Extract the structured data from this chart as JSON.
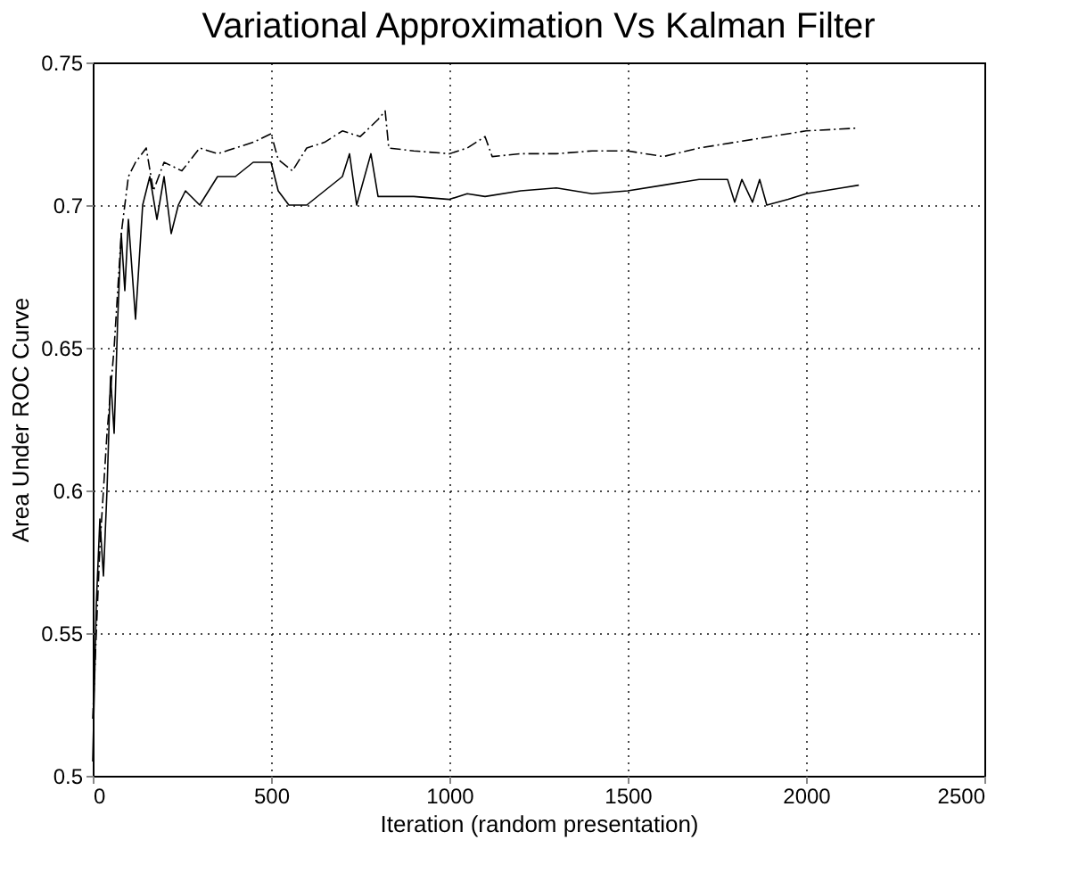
{
  "chart_data": {
    "type": "line",
    "title": "Variational Approximation Vs Kalman Filter",
    "xlabel": "Iteration (random presentation)",
    "ylabel": "Area Under ROC Curve",
    "xlim": [
      0,
      2500
    ],
    "xticks": [
      0,
      500,
      1000,
      1500,
      2000,
      2500
    ],
    "ylim": [
      0.5,
      0.75
    ],
    "yticks": [
      0.5,
      0.55,
      0.6,
      0.65,
      0.7,
      0.75
    ],
    "grid": true,
    "marker": "none",
    "series": [
      {
        "color": "#000000",
        "line_style": "solid",
        "x": [
          0,
          10,
          20,
          30,
          40,
          50,
          60,
          70,
          80,
          90,
          100,
          120,
          140,
          160,
          180,
          200,
          220,
          240,
          260,
          300,
          350,
          400,
          450,
          500,
          520,
          550,
          600,
          650,
          700,
          720,
          740,
          780,
          800,
          850,
          900,
          1000,
          1050,
          1100,
          1200,
          1300,
          1400,
          1500,
          1600,
          1700,
          1780,
          1800,
          1820,
          1850,
          1870,
          1890,
          1950,
          2000,
          2100,
          2148
        ],
        "values": [
          0.505,
          0.56,
          0.59,
          0.57,
          0.6,
          0.64,
          0.62,
          0.66,
          0.69,
          0.67,
          0.695,
          0.66,
          0.7,
          0.71,
          0.695,
          0.71,
          0.69,
          0.7,
          0.705,
          0.7,
          0.71,
          0.71,
          0.715,
          0.715,
          0.705,
          0.7,
          0.7,
          0.705,
          0.71,
          0.718,
          0.7,
          0.718,
          0.703,
          0.703,
          0.703,
          0.702,
          0.704,
          0.703,
          0.705,
          0.706,
          0.704,
          0.705,
          0.707,
          0.709,
          0.709,
          0.701,
          0.709,
          0.701,
          0.709,
          0.7,
          0.702,
          0.704,
          0.706,
          0.707
        ]
      },
      {
        "color": "#000000",
        "line_style": "dashed",
        "x": [
          0,
          20,
          40,
          60,
          80,
          100,
          120,
          150,
          170,
          200,
          250,
          300,
          350,
          400,
          450,
          500,
          520,
          560,
          600,
          650,
          700,
          750,
          800,
          820,
          830,
          900,
          1000,
          1050,
          1100,
          1120,
          1200,
          1300,
          1400,
          1500,
          1600,
          1700,
          1800,
          1900,
          2000,
          2148
        ],
        "values": [
          0.52,
          0.58,
          0.62,
          0.65,
          0.69,
          0.71,
          0.715,
          0.72,
          0.705,
          0.715,
          0.712,
          0.72,
          0.718,
          0.72,
          0.722,
          0.725,
          0.716,
          0.712,
          0.72,
          0.722,
          0.726,
          0.724,
          0.73,
          0.733,
          0.72,
          0.719,
          0.718,
          0.72,
          0.724,
          0.717,
          0.718,
          0.718,
          0.719,
          0.719,
          0.717,
          0.72,
          0.722,
          0.724,
          0.726,
          0.727
        ]
      }
    ]
  }
}
